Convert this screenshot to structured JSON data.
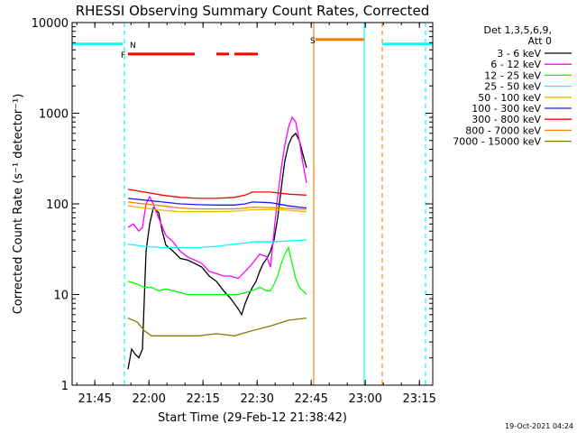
{
  "chart_data": {
    "type": "line",
    "title": "RHESSI Observing Summary Count Rates, Corrected",
    "xlabel": "Start Time (29-Feb-12 21:38:42)",
    "ylabel": "Corrected Count Rate (s⁻¹ detector⁻¹)",
    "x_unit": "minutes after 21:38:42",
    "xlim": [
      0,
      100
    ],
    "ylim": [
      1,
      10000
    ],
    "yscale": "log",
    "x_ticks": [
      {
        "v": 6.3,
        "label": "21:45"
      },
      {
        "v": 21.3,
        "label": "22:00"
      },
      {
        "v": 36.3,
        "label": "22:15"
      },
      {
        "v": 51.3,
        "label": "22:30"
      },
      {
        "v": 66.3,
        "label": "22:45"
      },
      {
        "v": 81.3,
        "label": "23:00"
      },
      {
        "v": 96.3,
        "label": "23:15"
      }
    ],
    "y_ticks": [
      {
        "v": 1,
        "label": "1"
      },
      {
        "v": 10,
        "label": "10"
      },
      {
        "v": 100,
        "label": "100"
      },
      {
        "v": 1000,
        "label": "1000"
      },
      {
        "v": 10000,
        "label": "10000"
      }
    ],
    "legend_header": [
      "Det 1,3,5,6,9,",
      "Att 0"
    ],
    "series": [
      {
        "name": "3 - 6 keV",
        "color": "#000000",
        "points": [
          [
            15.5,
            1.5
          ],
          [
            16.5,
            2.5
          ],
          [
            17.5,
            2.2
          ],
          [
            18.5,
            2
          ],
          [
            19.5,
            2.5
          ],
          [
            20.5,
            30
          ],
          [
            21.5,
            60
          ],
          [
            22.5,
            90
          ],
          [
            24,
            80
          ],
          [
            25,
            50
          ],
          [
            26,
            35
          ],
          [
            28,
            30
          ],
          [
            30,
            25
          ],
          [
            32,
            24
          ],
          [
            34,
            22
          ],
          [
            36,
            20
          ],
          [
            38,
            16
          ],
          [
            40,
            14
          ],
          [
            42,
            11
          ],
          [
            44,
            9
          ],
          [
            46,
            7
          ],
          [
            47,
            6
          ],
          [
            48,
            8
          ],
          [
            49,
            10
          ],
          [
            50,
            12
          ],
          [
            51,
            14
          ],
          [
            52,
            18
          ],
          [
            53,
            22
          ],
          [
            54,
            25
          ],
          [
            55,
            30
          ],
          [
            56,
            40
          ],
          [
            57,
            70
          ],
          [
            58,
            150
          ],
          [
            59,
            300
          ],
          [
            60,
            450
          ],
          [
            61,
            550
          ],
          [
            62,
            600
          ],
          [
            63,
            500
          ],
          [
            64,
            350
          ],
          [
            65,
            250
          ]
        ]
      },
      {
        "name": "6 - 12 keV",
        "color": "#ff00ff",
        "points": [
          [
            15.5,
            55
          ],
          [
            17,
            60
          ],
          [
            18.5,
            50
          ],
          [
            19.5,
            55
          ],
          [
            20.5,
            100
          ],
          [
            21.5,
            120
          ],
          [
            22.5,
            100
          ],
          [
            24,
            70
          ],
          [
            26,
            45
          ],
          [
            28,
            38
          ],
          [
            30,
            30
          ],
          [
            32,
            26
          ],
          [
            34,
            24
          ],
          [
            36,
            22
          ],
          [
            38,
            18
          ],
          [
            40,
            17
          ],
          [
            42,
            16
          ],
          [
            44,
            16
          ],
          [
            46,
            15
          ],
          [
            48,
            18
          ],
          [
            50,
            22
          ],
          [
            52,
            28
          ],
          [
            54,
            26
          ],
          [
            55,
            20
          ],
          [
            56,
            50
          ],
          [
            57,
            120
          ],
          [
            58,
            250
          ],
          [
            59,
            450
          ],
          [
            60,
            700
          ],
          [
            61,
            900
          ],
          [
            62,
            800
          ],
          [
            63,
            500
          ],
          [
            64,
            280
          ],
          [
            65,
            170
          ]
        ]
      },
      {
        "name": "12 - 25 keV",
        "color": "#00ff00",
        "points": [
          [
            15.5,
            14
          ],
          [
            18,
            13
          ],
          [
            20,
            12
          ],
          [
            22,
            12
          ],
          [
            24,
            11
          ],
          [
            26,
            11.5
          ],
          [
            28,
            11
          ],
          [
            30,
            10.5
          ],
          [
            32,
            10
          ],
          [
            34,
            10
          ],
          [
            36,
            10
          ],
          [
            38,
            10
          ],
          [
            40,
            10
          ],
          [
            42,
            10
          ],
          [
            44,
            10
          ],
          [
            46,
            10
          ],
          [
            48,
            10.5
          ],
          [
            50,
            11
          ],
          [
            52,
            12
          ],
          [
            54,
            11
          ],
          [
            55,
            11
          ],
          [
            56,
            13
          ],
          [
            57,
            16
          ],
          [
            58,
            22
          ],
          [
            59,
            28
          ],
          [
            60,
            33
          ],
          [
            61,
            22
          ],
          [
            62,
            15
          ],
          [
            63,
            12
          ],
          [
            64,
            11
          ],
          [
            65,
            10
          ]
        ]
      },
      {
        "name": "25 - 50 keV",
        "color": "#00ffff",
        "points": [
          [
            15.5,
            36
          ],
          [
            20,
            34
          ],
          [
            25,
            33
          ],
          [
            30,
            33
          ],
          [
            35,
            33
          ],
          [
            40,
            34
          ],
          [
            45,
            36
          ],
          [
            48,
            37
          ],
          [
            50,
            38
          ],
          [
            55,
            38
          ],
          [
            60,
            39
          ],
          [
            65,
            40
          ]
        ]
      },
      {
        "name": "50 - 100 keV",
        "color": "#e0c000",
        "points": [
          [
            15.5,
            95
          ],
          [
            20,
            90
          ],
          [
            25,
            85
          ],
          [
            30,
            82
          ],
          [
            35,
            82
          ],
          [
            40,
            82
          ],
          [
            45,
            83
          ],
          [
            48,
            85
          ],
          [
            50,
            86
          ],
          [
            55,
            87
          ],
          [
            60,
            85
          ],
          [
            65,
            82
          ]
        ]
      },
      {
        "name": "100 - 300 keV",
        "color": "#1a1aff",
        "points": [
          [
            15.5,
            115
          ],
          [
            20,
            110
          ],
          [
            25,
            105
          ],
          [
            30,
            100
          ],
          [
            35,
            98
          ],
          [
            40,
            97
          ],
          [
            45,
            97
          ],
          [
            48,
            100
          ],
          [
            50,
            105
          ],
          [
            55,
            103
          ],
          [
            60,
            95
          ],
          [
            65,
            90
          ]
        ]
      },
      {
        "name": "300 - 800 keV",
        "color": "#ff0000",
        "points": [
          [
            15.5,
            145
          ],
          [
            20,
            135
          ],
          [
            25,
            125
          ],
          [
            30,
            118
          ],
          [
            35,
            115
          ],
          [
            40,
            115
          ],
          [
            45,
            118
          ],
          [
            48,
            125
          ],
          [
            50,
            135
          ],
          [
            55,
            135
          ],
          [
            60,
            128
          ],
          [
            65,
            125
          ]
        ]
      },
      {
        "name": "800 - 7000 keV",
        "color": "#ff8000",
        "points": [
          [
            15.5,
            105
          ],
          [
            20,
            100
          ],
          [
            25,
            95
          ],
          [
            30,
            90
          ],
          [
            35,
            88
          ],
          [
            40,
            88
          ],
          [
            45,
            88
          ],
          [
            48,
            90
          ],
          [
            50,
            92
          ],
          [
            55,
            91
          ],
          [
            60,
            89
          ],
          [
            65,
            87
          ]
        ]
      },
      {
        "name": "7000 - 15000 keV",
        "color": "#808000",
        "points": [
          [
            15.5,
            5.5
          ],
          [
            18,
            5
          ],
          [
            20,
            4
          ],
          [
            22,
            3.5
          ],
          [
            25,
            3.5
          ],
          [
            30,
            3.5
          ],
          [
            35,
            3.5
          ],
          [
            40,
            3.7
          ],
          [
            45,
            3.5
          ],
          [
            48,
            3.8
          ],
          [
            50,
            4
          ],
          [
            55,
            4.5
          ],
          [
            60,
            5.2
          ],
          [
            65,
            5.5
          ]
        ]
      }
    ],
    "state_bars": [
      {
        "label": "",
        "color": "#00ffff",
        "y": 5800,
        "segments": [
          [
            0,
            14
          ]
        ]
      },
      {
        "label": "N",
        "color": "#00ffff",
        "y": 5800,
        "segments": [
          [
            86,
            100
          ]
        ],
        "label_x": 16
      },
      {
        "label": "F",
        "color": "#ff0000",
        "y": 4500,
        "segments": [
          [
            15.5,
            34
          ],
          [
            40,
            43.5
          ],
          [
            45,
            51.5
          ]
        ],
        "label_x": 13.5
      },
      {
        "label": "S",
        "color": "#ff8000",
        "y": 6500,
        "segments": [
          [
            67.5,
            81
          ]
        ],
        "label_x": 66
      }
    ],
    "vertical_markers": [
      {
        "x": 0,
        "color": "#00ffff",
        "style": "solid"
      },
      {
        "x": 14.5,
        "color": "#00ffff",
        "style": "dashed"
      },
      {
        "x": 67,
        "color": "#ff8000",
        "style": "solid"
      },
      {
        "x": 81,
        "color": "#00ffff",
        "style": "solid"
      },
      {
        "x": 86,
        "color": "#ff8000",
        "style": "dashed"
      },
      {
        "x": 98,
        "color": "#00ffff",
        "style": "dashed"
      }
    ],
    "timestamp": "19-Oct-2021 04:24"
  }
}
